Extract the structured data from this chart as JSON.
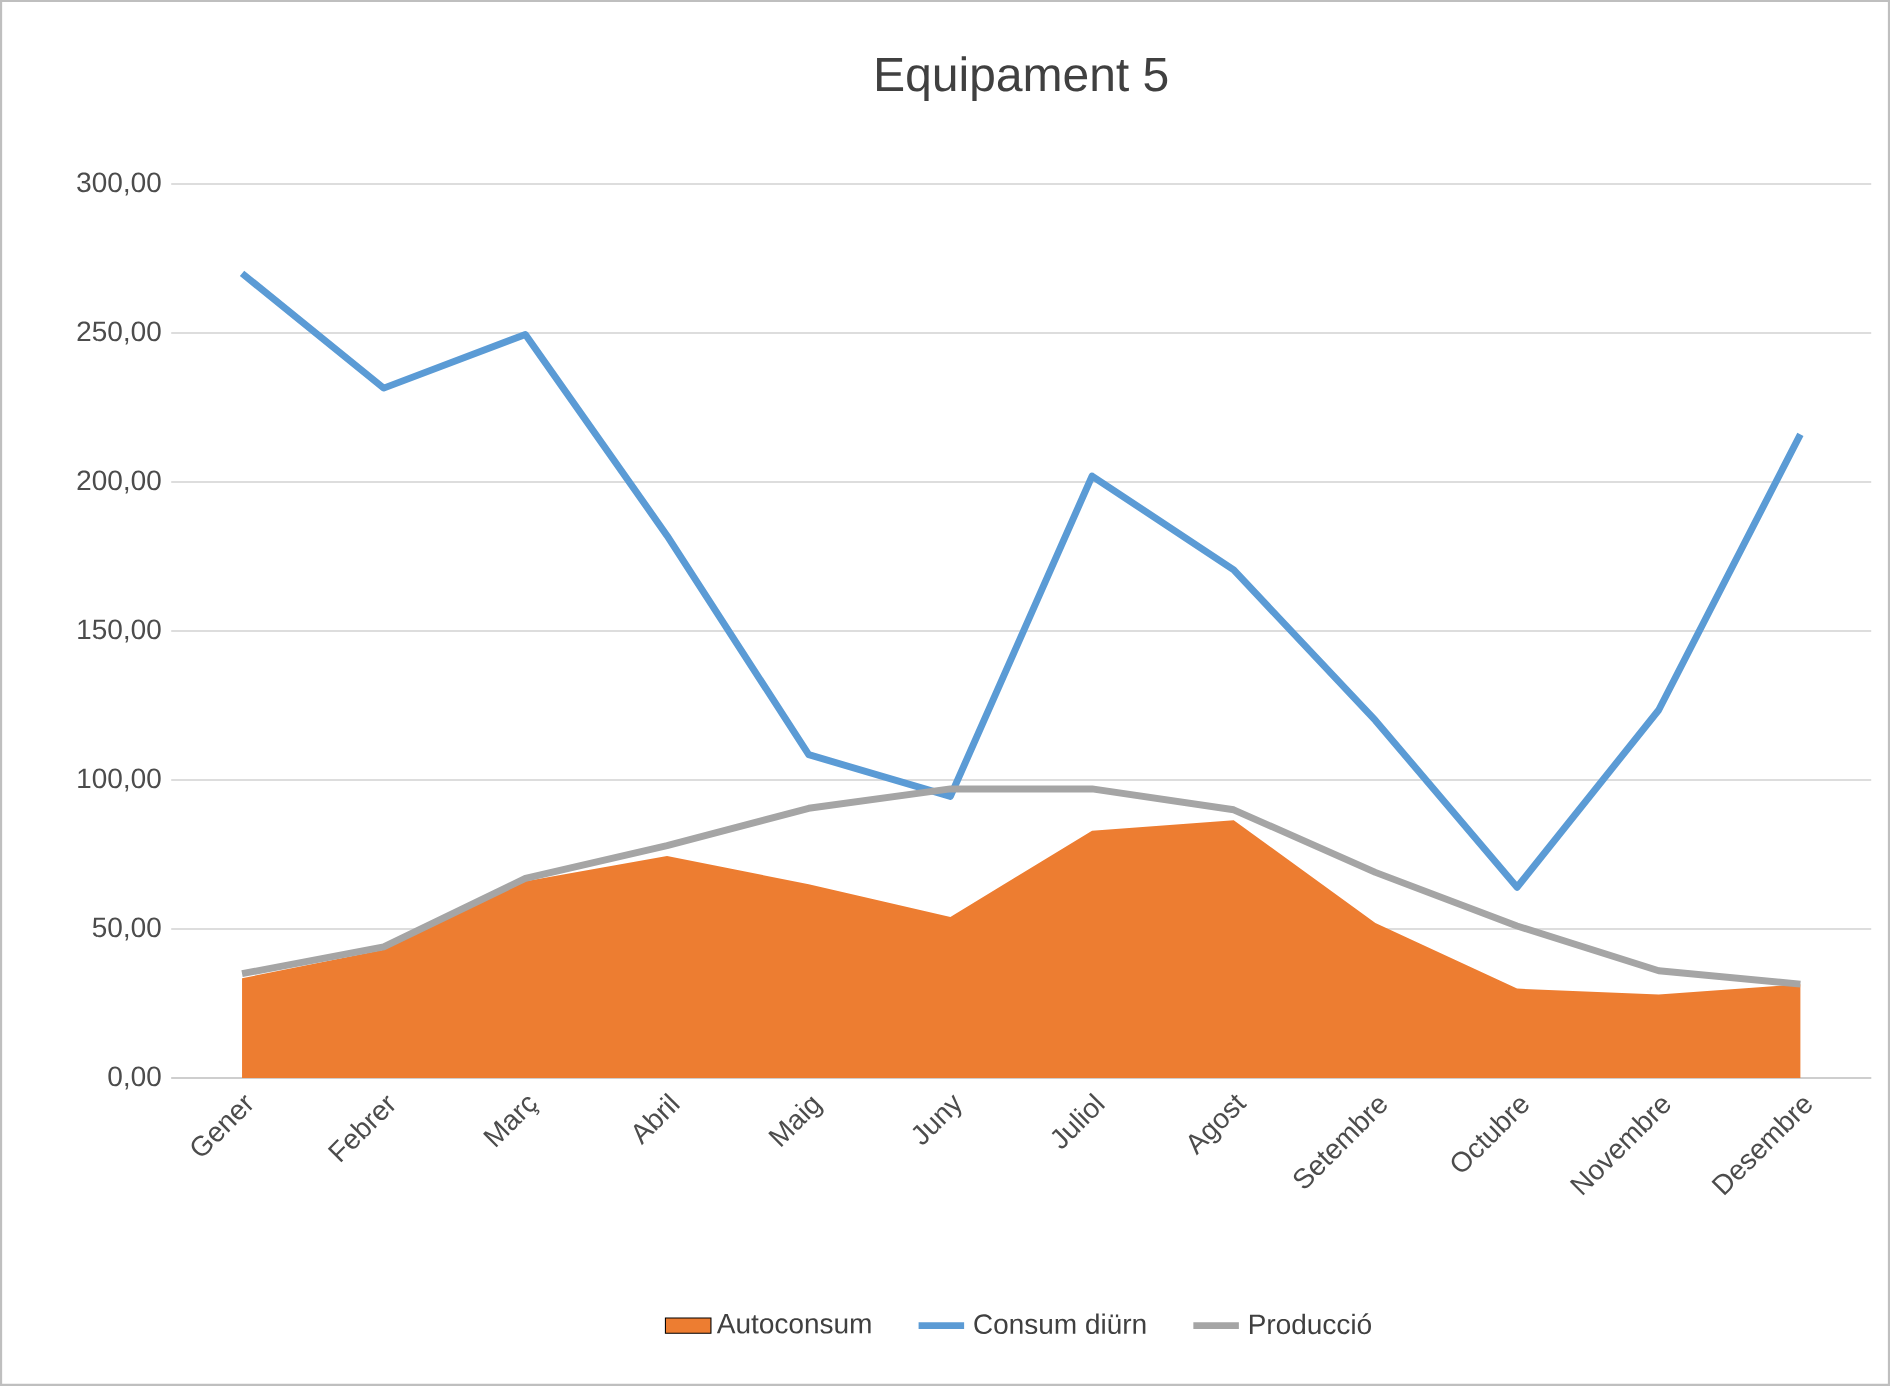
{
  "chart_data": {
    "type": "line",
    "title": "Equipament 5",
    "categories": [
      "Gener",
      "Febrer",
      "Març",
      "Abril",
      "Maig",
      "Juny",
      "Juliol",
      "Agost",
      "Setembre",
      "Octubre",
      "Novembre",
      "Desembre"
    ],
    "series": [
      {
        "name": "Autoconsum",
        "type": "area",
        "color": "#ed7d31",
        "values": [
          33.5,
          43,
          66,
          74.5,
          65,
          54,
          83,
          86.5,
          52,
          30,
          28,
          31.5
        ]
      },
      {
        "name": "Consum diürn",
        "color": "#5b9bd5",
        "values": [
          270,
          231.5,
          249.5,
          182,
          108.5,
          94.5,
          202,
          170.5,
          120,
          64,
          123.5,
          216
        ]
      },
      {
        "name": "Producció",
        "color": "#a5a5a5",
        "values": [
          35,
          44,
          67,
          78,
          90.5,
          97,
          97,
          90,
          69,
          51,
          36,
          31.5
        ]
      }
    ],
    "ylim": [
      0,
      300
    ],
    "yticks": [
      {
        "value": 0,
        "label": "0,00"
      },
      {
        "value": 50,
        "label": "50,00"
      },
      {
        "value": 100,
        "label": "100,00"
      },
      {
        "value": 150,
        "label": "150,00"
      },
      {
        "value": 200,
        "label": "200,00"
      },
      {
        "value": 250,
        "label": "250,00"
      },
      {
        "value": 300,
        "label": "300,00"
      }
    ],
    "grid": "y",
    "legend": "bottom",
    "marker": "none",
    "line_style": "solid"
  }
}
